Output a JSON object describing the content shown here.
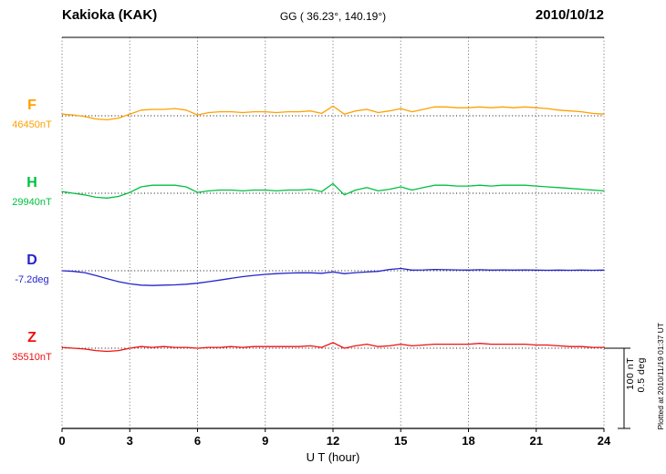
{
  "header": {
    "station": "Kakioka (KAK)",
    "coordinates": "GG ( 36.23°, 140.19°)",
    "date": "2010/10/12"
  },
  "scale_bar": {
    "nt_label": "100 nT",
    "deg_label": "0.5 deg"
  },
  "footer_note": "Plotted at 2010/11/19 01:37 UT",
  "chart_data": {
    "type": "line",
    "title": "Kakioka (KAK) magnetogram 2010/10/12",
    "xlabel": "U T (hour)",
    "x_ticks": [
      0,
      3,
      6,
      9,
      12,
      15,
      18,
      21,
      24
    ],
    "x_range": [
      0,
      24
    ],
    "x_step_hours": 0.5,
    "grid": "dotted vertical lines every 3 hours; dotted horizontal baseline per channel",
    "legend_position": "left",
    "scale": {
      "nT_per_bar": 100,
      "deg_per_bar": 0.5
    },
    "series": [
      {
        "name": "F",
        "unit": "nT",
        "baseline_value": 46450,
        "baseline_label": "46450nT",
        "color": "#FFA000",
        "offsets": [
          2,
          1,
          -1,
          -4,
          -5,
          -3,
          2,
          7,
          8,
          8,
          9,
          7,
          1,
          4,
          5,
          5,
          4,
          5,
          5,
          4,
          5,
          5,
          6,
          3,
          12,
          2,
          6,
          8,
          4,
          6,
          9,
          5,
          8,
          11,
          11,
          10,
          10,
          11,
          10,
          11,
          10,
          11,
          10,
          9,
          7,
          6,
          5,
          3,
          2
        ]
      },
      {
        "name": "H",
        "unit": "nT",
        "baseline_value": 29940,
        "baseline_label": "29940nT",
        "color": "#00C040",
        "offsets": [
          2,
          0,
          -2,
          -5,
          -6,
          -4,
          1,
          8,
          10,
          10,
          10,
          8,
          1,
          3,
          4,
          4,
          3,
          4,
          4,
          3,
          4,
          4,
          5,
          2,
          12,
          -2,
          4,
          7,
          3,
          5,
          8,
          4,
          7,
          10,
          10,
          9,
          9,
          10,
          9,
          10,
          10,
          10,
          9,
          8,
          7,
          6,
          5,
          4,
          3
        ]
      },
      {
        "name": "D",
        "unit": "deg",
        "baseline_value": -7.2,
        "baseline_label": "-7.2deg",
        "color": "#2424CC",
        "offsets": [
          0,
          -0.004,
          -0.012,
          -0.03,
          -0.05,
          -0.068,
          -0.082,
          -0.09,
          -0.092,
          -0.09,
          -0.088,
          -0.084,
          -0.078,
          -0.068,
          -0.058,
          -0.047,
          -0.037,
          -0.029,
          -0.023,
          -0.018,
          -0.015,
          -0.013,
          -0.013,
          -0.016,
          -0.008,
          -0.018,
          -0.012,
          -0.008,
          -0.004,
          0.008,
          0.014,
          0.004,
          0.005,
          0.008,
          0.006,
          0.005,
          0.004,
          0.006,
          0.004,
          0.005,
          0.004,
          0.005,
          0.004,
          0.003,
          0.004,
          0.003,
          0.004,
          0.003,
          0.004
        ]
      },
      {
        "name": "Z",
        "unit": "nT",
        "baseline_value": 35510,
        "baseline_label": "35510nT",
        "color": "#F01010",
        "offsets": [
          1,
          0,
          -1,
          -3,
          -4,
          -3,
          0,
          2,
          1,
          2,
          1,
          1,
          0,
          1,
          1,
          2,
          1,
          2,
          2,
          2,
          2,
          2,
          3,
          1,
          7,
          0,
          3,
          5,
          2,
          3,
          5,
          3,
          4,
          5,
          5,
          5,
          5,
          6,
          5,
          5,
          5,
          5,
          4,
          4,
          3,
          2,
          2,
          1,
          1
        ]
      }
    ]
  }
}
